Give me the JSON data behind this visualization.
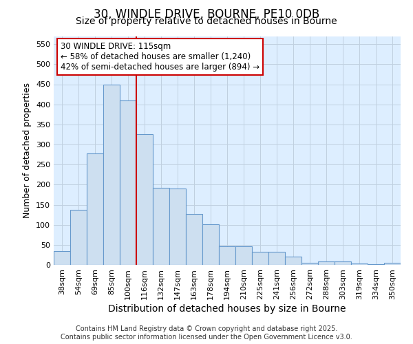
{
  "title1": "30, WINDLE DRIVE, BOURNE, PE10 0DB",
  "title2": "Size of property relative to detached houses in Bourne",
  "xlabel": "Distribution of detached houses by size in Bourne",
  "ylabel": "Number of detached properties",
  "categories": [
    "38sqm",
    "54sqm",
    "69sqm",
    "85sqm",
    "100sqm",
    "116sqm",
    "132sqm",
    "147sqm",
    "163sqm",
    "178sqm",
    "194sqm",
    "210sqm",
    "225sqm",
    "241sqm",
    "256sqm",
    "272sqm",
    "288sqm",
    "303sqm",
    "319sqm",
    "334sqm",
    "350sqm"
  ],
  "values": [
    35,
    137,
    277,
    450,
    410,
    325,
    192,
    190,
    127,
    102,
    46,
    46,
    32,
    32,
    20,
    5,
    8,
    8,
    4,
    2,
    5
  ],
  "bar_color": "#cddff0",
  "bar_edge_color": "#6699cc",
  "vline_color": "#cc0000",
  "vline_index": 5,
  "annotation_line1": "30 WINDLE DRIVE: 115sqm",
  "annotation_line2": "← 58% of detached houses are smaller (1,240)",
  "annotation_line3": "42% of semi-detached houses are larger (894) →",
  "annotation_box_color": "#ffffff",
  "annotation_box_edge": "#cc0000",
  "grid_color": "#c0d0e0",
  "plot_bg_color": "#ddeeff",
  "fig_bg_color": "#ffffff",
  "ylim_max": 570,
  "yticks": [
    0,
    50,
    100,
    150,
    200,
    250,
    300,
    350,
    400,
    450,
    500,
    550
  ],
  "footer1": "Contains HM Land Registry data © Crown copyright and database right 2025.",
  "footer2": "Contains public sector information licensed under the Open Government Licence v3.0.",
  "title1_fontsize": 12,
  "title2_fontsize": 10,
  "tick_fontsize": 8,
  "xlabel_fontsize": 10,
  "ylabel_fontsize": 9,
  "annot_fontsize": 8.5,
  "footer_fontsize": 7
}
